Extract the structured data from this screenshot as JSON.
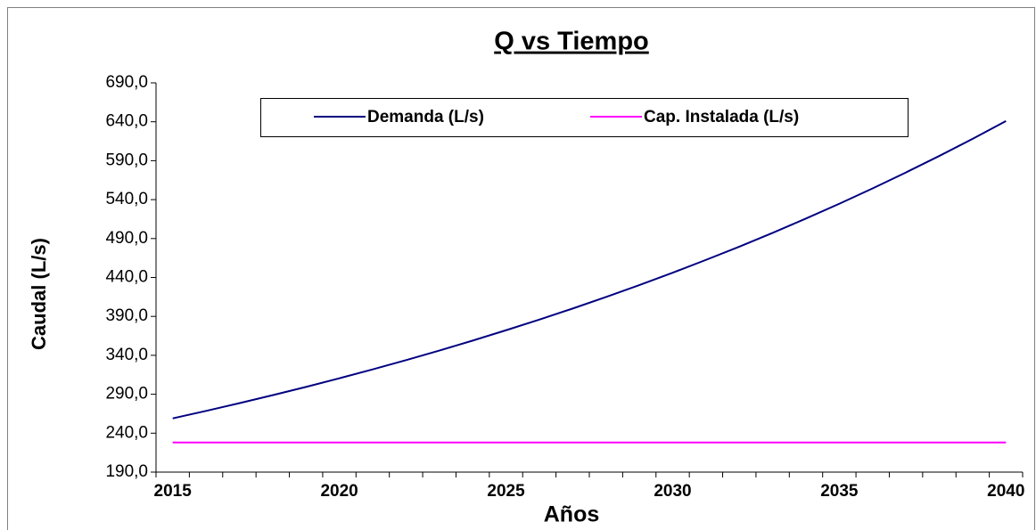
{
  "chart_data": {
    "type": "line",
    "title": "Q vs Tiempo",
    "x_label": "Años",
    "y_label": "Caudal (L/s)",
    "categories": [
      "2015",
      null,
      null,
      null,
      null,
      "2020",
      null,
      null,
      null,
      null,
      "2025",
      null,
      null,
      null,
      null,
      "2030",
      null,
      null,
      null,
      null,
      "2035",
      null,
      null,
      null,
      null,
      "2040"
    ],
    "series": [
      {
        "name": "Demanda (L/s)",
        "color": "#000080",
        "values": [
          259.0,
          268.6,
          278.5,
          288.8,
          299.4,
          310.5,
          321.9,
          333.8,
          346.1,
          358.9,
          372.2,
          385.9,
          400.1,
          414.9,
          430.2,
          446.1,
          462.6,
          479.6,
          497.3,
          515.7,
          534.7,
          554.4,
          574.9,
          596.1,
          618.1,
          640.9
        ]
      },
      {
        "name": "Cap. Instalada (L/s)",
        "color": "#ff00ff",
        "values": [
          228,
          228,
          228,
          228,
          228,
          228,
          228,
          228,
          228,
          228,
          228,
          228,
          228,
          228,
          228,
          228,
          228,
          228,
          228,
          228,
          228,
          228,
          228,
          228,
          228,
          228
        ]
      }
    ],
    "ylim": [
      190,
      690
    ],
    "yticks": [
      {
        "value": 190,
        "label": "190,0"
      },
      {
        "value": 240,
        "label": "240,0"
      },
      {
        "value": 290,
        "label": "290,0"
      },
      {
        "value": 340,
        "label": "340,0"
      },
      {
        "value": 390,
        "label": "390,0"
      },
      {
        "value": 440,
        "label": "440,0"
      },
      {
        "value": 490,
        "label": "490,0"
      },
      {
        "value": 540,
        "label": "540,0"
      },
      {
        "value": 590,
        "label": "590,0"
      },
      {
        "value": 640,
        "label": "640,0"
      },
      {
        "value": 690,
        "label": "690,0"
      }
    ],
    "grid": false,
    "legend": "top"
  }
}
